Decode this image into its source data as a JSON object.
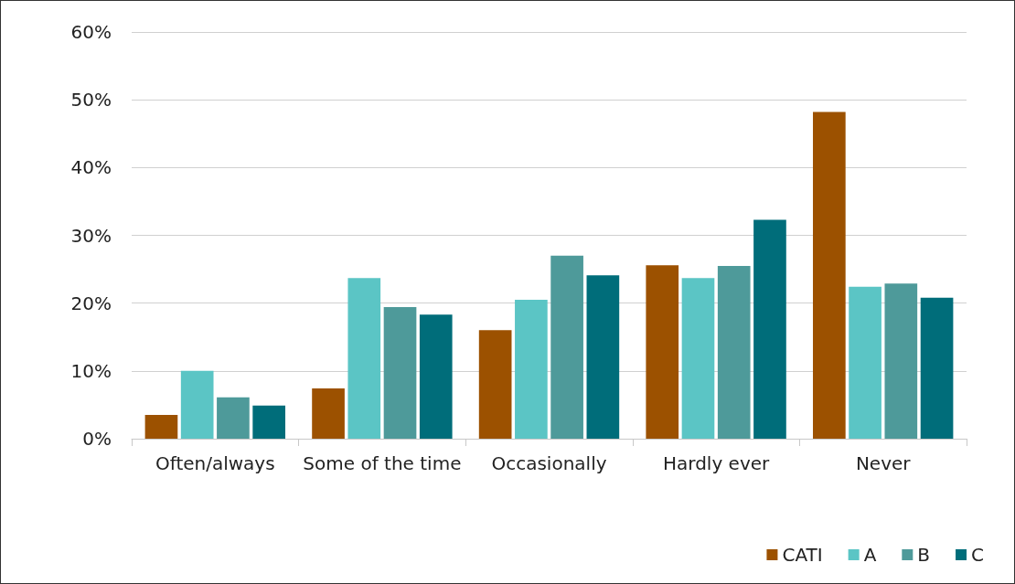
{
  "chart_data": {
    "type": "bar",
    "categories": [
      "Often/always",
      "Some of the time",
      "Occasionally",
      "Hardly ever",
      "Never"
    ],
    "series": [
      {
        "name": "CATI",
        "color": "#9c5100",
        "values": [
          3.5,
          7.4,
          16.0,
          25.6,
          48.2
        ]
      },
      {
        "name": "A",
        "color": "#5bc5c5",
        "values": [
          10.0,
          23.7,
          20.5,
          23.7,
          22.4
        ]
      },
      {
        "name": "B",
        "color": "#4e9a9a",
        "values": [
          6.1,
          19.4,
          27.0,
          25.5,
          22.9
        ]
      },
      {
        "name": "C",
        "color": "#006d7a",
        "values": [
          4.9,
          18.3,
          24.1,
          32.3,
          20.8
        ]
      }
    ],
    "ylim": [
      0,
      60
    ],
    "yticks": [
      {
        "value": 0,
        "label": "0%"
      },
      {
        "value": 10,
        "label": "10%"
      },
      {
        "value": 20,
        "label": "20%"
      },
      {
        "value": 30,
        "label": "30%"
      },
      {
        "value": 40,
        "label": "40%"
      },
      {
        "value": 50,
        "label": "50%"
      },
      {
        "value": 60,
        "label": "60%"
      }
    ],
    "grid": "y",
    "legend": "bottom right"
  }
}
